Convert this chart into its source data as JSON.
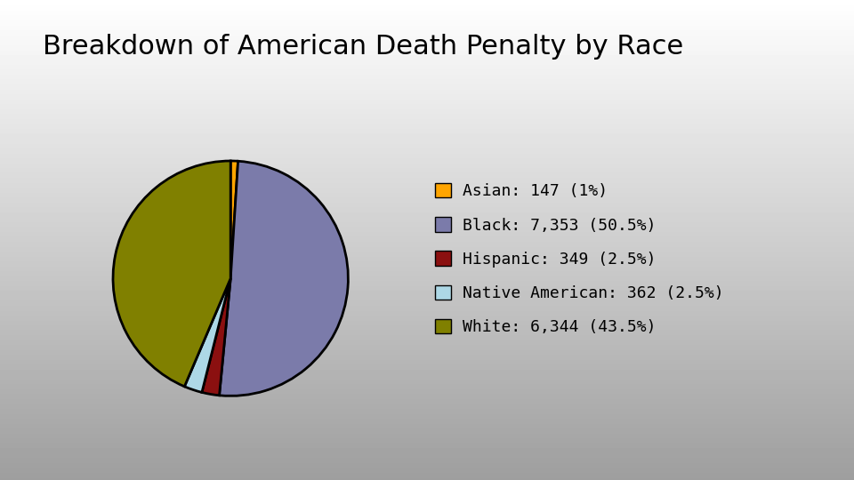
{
  "title": "Breakdown of American Death Penalty by Race",
  "title_fontsize": 22,
  "slices": [
    {
      "label": "Asian: 147 (1%)",
      "value": 147,
      "color": "#FFA500"
    },
    {
      "label": "Black: 7,353 (50.5%)",
      "value": 7353,
      "color": "#7B7BAA"
    },
    {
      "label": "Hispanic: 349 (2.5%)",
      "value": 349,
      "color": "#8B1010"
    },
    {
      "label": "Native American: 362 (2.5%)",
      "value": 362,
      "color": "#ADD8E6"
    },
    {
      "label": "White: 6,344 (43.5%)",
      "value": 6344,
      "color": "#808000"
    }
  ],
  "wedge_edge_color": "#000000",
  "wedge_linewidth": 2.0,
  "legend_fontsize": 13
}
